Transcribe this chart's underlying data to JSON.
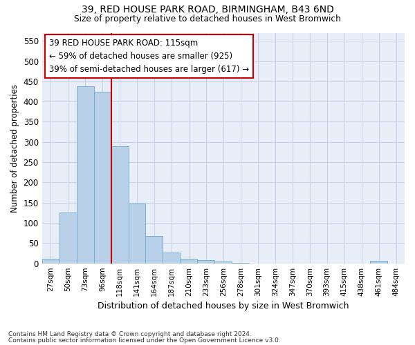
{
  "title1": "39, RED HOUSE PARK ROAD, BIRMINGHAM, B43 6ND",
  "title2": "Size of property relative to detached houses in West Bromwich",
  "xlabel": "Distribution of detached houses by size in West Bromwich",
  "ylabel": "Number of detached properties",
  "footer1": "Contains HM Land Registry data © Crown copyright and database right 2024.",
  "footer2": "Contains public sector information licensed under the Open Government Licence v3.0.",
  "bar_labels": [
    "27sqm",
    "50sqm",
    "73sqm",
    "96sqm",
    "118sqm",
    "141sqm",
    "164sqm",
    "187sqm",
    "210sqm",
    "233sqm",
    "256sqm",
    "278sqm",
    "301sqm",
    "324sqm",
    "347sqm",
    "370sqm",
    "393sqm",
    "415sqm",
    "438sqm",
    "461sqm",
    "484sqm"
  ],
  "bar_values": [
    12,
    126,
    438,
    425,
    290,
    147,
    68,
    26,
    11,
    8,
    5,
    1,
    0,
    0,
    0,
    0,
    0,
    0,
    0,
    6,
    0
  ],
  "bar_color": "#b8d0e8",
  "bar_edgecolor": "#7aaecc",
  "vline_color": "#cc0000",
  "annotation_text": "39 RED HOUSE PARK ROAD: 115sqm\n← 59% of detached houses are smaller (925)\n39% of semi-detached houses are larger (617) →",
  "annotation_box_color": "#ffffff",
  "annotation_box_edgecolor": "#cc0000",
  "ylim": [
    0,
    570
  ],
  "yticks": [
    0,
    50,
    100,
    150,
    200,
    250,
    300,
    350,
    400,
    450,
    500,
    550
  ],
  "grid_color": "#c8d4e8",
  "bg_color": "#e8eef8"
}
